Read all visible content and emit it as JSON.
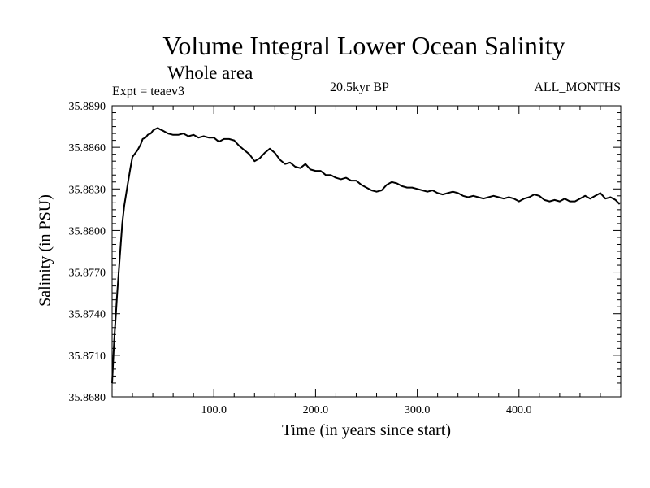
{
  "chart_data": {
    "type": "line",
    "title": "Volume Integral Lower Ocean Salinity",
    "subtitle": "Whole area",
    "experiment": "Expt = teaev3",
    "period": "20.5kyr BP",
    "months": "ALL_MONTHS",
    "xlabel": "Time (in years since start)",
    "ylabel": "Salinity (in PSU)",
    "xlim": [
      0,
      500
    ],
    "ylim": [
      35.868,
      35.889
    ],
    "xticks": [
      100,
      200,
      300,
      400
    ],
    "xtick_labels": [
      "100.0",
      "200.0",
      "300.0",
      "400.0"
    ],
    "yticks": [
      35.868,
      35.871,
      35.874,
      35.877,
      35.88,
      35.883,
      35.886,
      35.889
    ],
    "ytick_labels": [
      "35.8680",
      "35.8710",
      "35.8740",
      "35.8770",
      "35.8800",
      "35.8830",
      "35.8860",
      "35.8890"
    ],
    "series": [
      {
        "name": "Salinity",
        "x": [
          0,
          2,
          5,
          8,
          10,
          12,
          15,
          18,
          20,
          22,
          25,
          28,
          30,
          33,
          35,
          38,
          40,
          42,
          45,
          47,
          50,
          55,
          60,
          65,
          70,
          75,
          80,
          85,
          90,
          95,
          100,
          105,
          110,
          115,
          120,
          125,
          130,
          135,
          140,
          145,
          150,
          155,
          160,
          165,
          170,
          175,
          180,
          185,
          190,
          195,
          200,
          205,
          210,
          215,
          220,
          225,
          230,
          235,
          240,
          245,
          250,
          255,
          260,
          265,
          270,
          275,
          280,
          285,
          290,
          295,
          300,
          305,
          310,
          315,
          320,
          325,
          330,
          335,
          340,
          345,
          350,
          355,
          360,
          365,
          370,
          375,
          380,
          385,
          390,
          395,
          400,
          405,
          410,
          415,
          420,
          425,
          430,
          435,
          440,
          445,
          450,
          455,
          460,
          465,
          470,
          475,
          480,
          485,
          490,
          495,
          499
        ],
        "values": [
          35.869,
          35.872,
          35.8755,
          35.8785,
          35.8805,
          35.8818,
          35.8832,
          35.8845,
          35.8853,
          35.8855,
          35.8858,
          35.8862,
          35.8866,
          35.8867,
          35.8869,
          35.887,
          35.8872,
          35.8873,
          35.8874,
          35.8873,
          35.8872,
          35.887,
          35.8869,
          35.8869,
          35.887,
          35.8868,
          35.8869,
          35.8867,
          35.8868,
          35.8867,
          35.8867,
          35.8864,
          35.8866,
          35.8866,
          35.8865,
          35.8861,
          35.8858,
          35.8855,
          35.885,
          35.8852,
          35.8856,
          35.8859,
          35.8856,
          35.8851,
          35.8848,
          35.8849,
          35.8846,
          35.8845,
          35.8848,
          35.8844,
          35.8843,
          35.8843,
          35.884,
          35.884,
          35.8838,
          35.8837,
          35.8838,
          35.8836,
          35.8836,
          35.8833,
          35.8831,
          35.8829,
          35.8828,
          35.8829,
          35.8833,
          35.8835,
          35.8834,
          35.8832,
          35.8831,
          35.8831,
          35.883,
          35.8829,
          35.8828,
          35.8829,
          35.8827,
          35.8826,
          35.8827,
          35.8828,
          35.8827,
          35.8825,
          35.8824,
          35.8825,
          35.8824,
          35.8823,
          35.8824,
          35.8825,
          35.8824,
          35.8823,
          35.8824,
          35.8823,
          35.8821,
          35.8823,
          35.8824,
          35.8826,
          35.8825,
          35.8822,
          35.8821,
          35.8822,
          35.8821,
          35.8823,
          35.8821,
          35.8821,
          35.8823,
          35.8825,
          35.8823,
          35.8825,
          35.8827,
          35.8823,
          35.8824,
          35.8822,
          35.8819
        ]
      }
    ]
  }
}
